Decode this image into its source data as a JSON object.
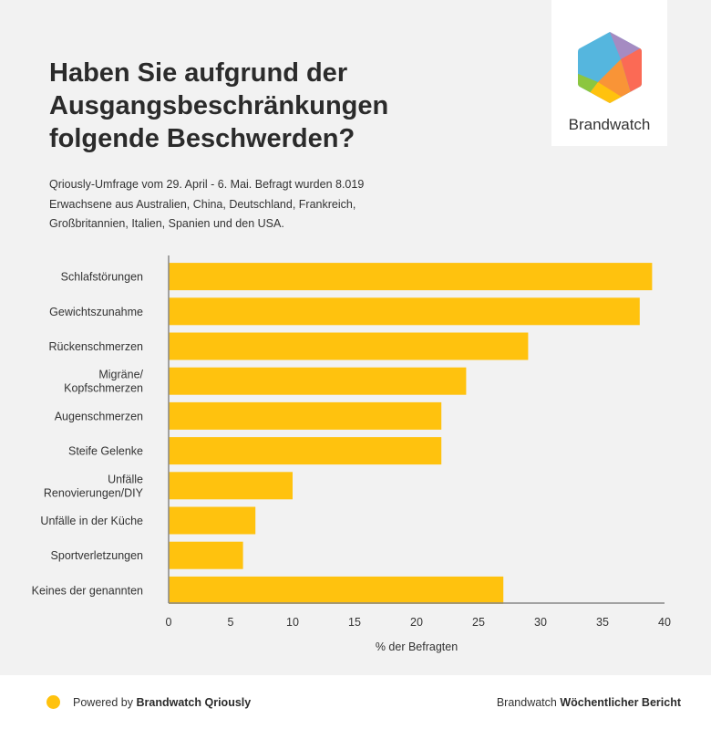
{
  "header": {
    "title": "Haben Sie aufgrund der Ausgangsbeschränkungen folgende Beschwerden?",
    "subtitle": "Qriously-Umfrage vom 29. April - 6. Mai. Befragt wurden 8.019 Erwachsene aus Australien, China, Deutschland, Frankreich, Großbritannien, Italien, Spanien und den USA."
  },
  "logo": {
    "text": "Brandwatch",
    "icon": "brandwatch-hexagon-logo"
  },
  "footer": {
    "powered_prefix": "Powered by ",
    "powered_brand": "Brandwatch Qriously",
    "report_prefix": "Brandwatch ",
    "report_name": "Wöchentlicher Bericht",
    "dot_color": "#ffc20e"
  },
  "chart_data": {
    "type": "bar",
    "orientation": "horizontal",
    "categories": [
      [
        "Schlafstörungen"
      ],
      [
        "Gewichtszunahme"
      ],
      [
        "Rückenschmerzen"
      ],
      [
        "Migräne/",
        "Kopfschmerzen"
      ],
      [
        "Augenschmerzen"
      ],
      [
        "Steife Gelenke"
      ],
      [
        "Unfälle",
        "Renovierungen/DIY"
      ],
      [
        "Unfälle in der Küche"
      ],
      [
        "Sportverletzungen"
      ],
      [
        "Keines der genannten"
      ]
    ],
    "values": [
      39,
      38,
      29,
      24,
      22,
      22,
      10,
      7,
      6,
      27
    ],
    "xlabel": "% der Befragten",
    "ylabel": "",
    "xlim": [
      0,
      40
    ],
    "xticks": [
      0,
      5,
      10,
      15,
      20,
      25,
      30,
      35,
      40
    ],
    "grid": false,
    "legend": "none",
    "bar_color": "#ffc20e"
  }
}
